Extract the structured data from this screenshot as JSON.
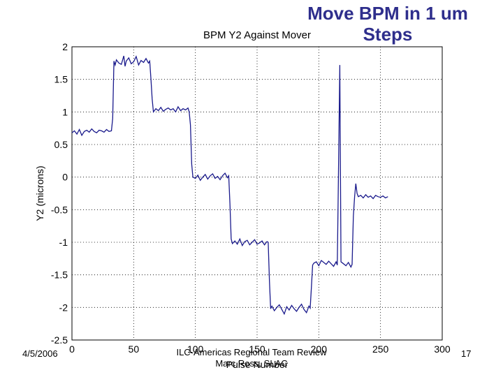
{
  "slide": {
    "title": "Move BPM in 1 um\nSteps",
    "footer_date": "4/5/2006",
    "footer_center_line1": "ILC-Americas Regional Team Review",
    "footer_center_line2": "Marc Ross, SLAC",
    "footer_page": "17"
  },
  "chart_data": {
    "type": "line",
    "title": "BPM Y2 Against Mover",
    "xlabel": "Pulse Number",
    "ylabel": "Y2 (microns)",
    "xlim": [
      0,
      300
    ],
    "ylim": [
      -2.5,
      2
    ],
    "x_ticks": [
      0,
      50,
      100,
      150,
      200,
      250,
      300
    ],
    "y_ticks": [
      2,
      1.5,
      1,
      0.5,
      0,
      -0.5,
      -1,
      -1.5,
      -2,
      -2.5
    ],
    "grid": true,
    "line_color": "#1a1a8c",
    "series": [
      {
        "x": [
          0,
          2,
          4,
          6,
          8,
          10,
          12,
          14,
          16,
          18,
          20,
          22,
          24,
          26,
          28,
          30,
          32,
          33,
          34,
          35,
          36,
          38,
          40,
          42,
          43,
          44,
          46,
          48,
          50,
          52,
          54,
          56,
          58,
          60,
          62,
          63,
          64,
          65,
          66,
          68,
          70,
          72,
          74,
          76,
          78,
          80,
          82,
          84,
          86,
          88,
          90,
          92,
          94,
          95,
          96,
          97,
          98,
          100,
          102,
          104,
          106,
          108,
          110,
          112,
          114,
          116,
          118,
          120,
          122,
          124,
          126,
          127,
          128,
          129,
          130,
          132,
          134,
          136,
          138,
          140,
          142,
          144,
          146,
          148,
          150,
          152,
          154,
          156,
          158,
          159,
          160,
          161,
          162,
          164,
          166,
          168,
          170,
          172,
          174,
          176,
          178,
          180,
          182,
          184,
          186,
          188,
          190,
          192,
          193,
          194,
          195,
          196,
          198,
          200,
          202,
          204,
          206,
          208,
          210,
          212,
          214,
          215,
          216,
          217,
          218,
          220,
          222,
          224,
          226,
          227,
          228,
          229,
          230,
          231,
          232,
          234,
          236,
          238,
          240,
          242,
          244,
          246,
          248,
          250,
          252,
          254,
          256
        ],
        "y": [
          0.68,
          0.71,
          0.66,
          0.73,
          0.64,
          0.7,
          0.72,
          0.69,
          0.74,
          0.7,
          0.68,
          0.72,
          0.71,
          0.69,
          0.73,
          0.7,
          0.71,
          0.9,
          1.78,
          1.72,
          1.8,
          1.75,
          1.73,
          1.86,
          1.7,
          1.78,
          1.83,
          1.74,
          1.77,
          1.85,
          1.72,
          1.79,
          1.76,
          1.82,
          1.75,
          1.78,
          1.5,
          1.2,
          1.0,
          1.05,
          1.02,
          1.07,
          1.01,
          1.04,
          1.06,
          1.03,
          1.05,
          1.0,
          1.08,
          1.02,
          1.05,
          1.03,
          1.06,
          1.0,
          0.8,
          0.2,
          0.0,
          -0.02,
          0.03,
          -0.05,
          0.0,
          0.04,
          -0.03,
          0.02,
          0.05,
          -0.02,
          0.01,
          -0.04,
          0.02,
          0.06,
          -0.01,
          0.02,
          -0.4,
          -0.95,
          -1.02,
          -0.98,
          -1.03,
          -0.95,
          -1.05,
          -0.99,
          -0.97,
          -1.04,
          -1.0,
          -0.96,
          -1.03,
          -1.01,
          -0.98,
          -1.04,
          -0.99,
          -1.0,
          -1.6,
          -2.02,
          -1.98,
          -2.05,
          -2.0,
          -1.96,
          -2.03,
          -2.1,
          -1.99,
          -2.04,
          -1.97,
          -2.02,
          -2.06,
          -2.0,
          -1.95,
          -2.03,
          -2.08,
          -1.98,
          -2.01,
          -1.7,
          -1.35,
          -1.32,
          -1.3,
          -1.36,
          -1.28,
          -1.31,
          -1.34,
          -1.29,
          -1.33,
          -1.37,
          -1.3,
          -1.35,
          0.15,
          1.72,
          -1.3,
          -1.33,
          -1.36,
          -1.31,
          -1.38,
          -1.34,
          -0.6,
          -0.3,
          -0.1,
          -0.25,
          -0.3,
          -0.28,
          -0.32,
          -0.27,
          -0.31,
          -0.29,
          -0.33,
          -0.28,
          -0.3,
          -0.31,
          -0.29,
          -0.32,
          -0.3
        ]
      }
    ]
  }
}
